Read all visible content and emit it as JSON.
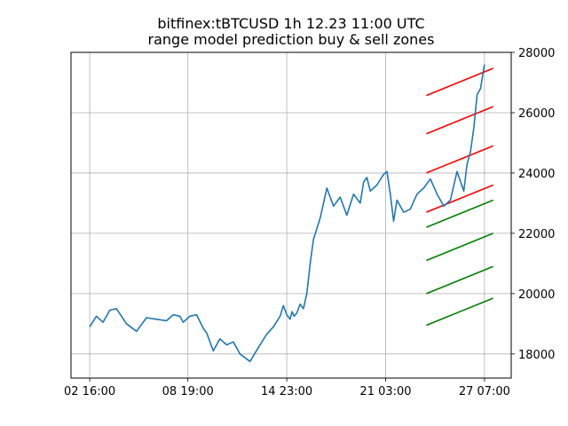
{
  "chart_data": {
    "type": "line",
    "title": "bitfinex:tBTCUSD 1h 12.23 11:00 UTC",
    "subtitle": "range model prediction buy & sell zones",
    "xlabel": "",
    "ylabel": "",
    "grid": true,
    "y_axis_side": "right",
    "x_tick_labels": [
      "02 16:00",
      "08 19:00",
      "14 23:00",
      "21 03:00",
      "27 07:00"
    ],
    "x_tick_values": [
      0,
      147,
      295,
      443,
      591
    ],
    "xlim": [
      -28,
      631
    ],
    "y_tick_values": [
      18000,
      20000,
      22000,
      24000,
      26000,
      28000
    ],
    "ylim": [
      17200,
      28000
    ],
    "series": [
      {
        "color": "#1f77b4",
        "x": [
          0,
          10,
          20,
          30,
          40,
          55,
          70,
          85,
          100,
          115,
          125,
          135,
          140,
          150,
          160,
          170,
          175,
          180,
          185,
          195,
          205,
          215,
          225,
          240,
          255,
          265,
          275,
          285,
          290,
          295,
          300,
          303,
          306,
          310,
          315,
          320,
          325,
          330,
          335,
          345,
          355,
          365,
          375,
          385,
          395,
          405,
          410,
          415,
          420,
          430,
          440,
          445,
          450,
          455,
          460,
          470,
          480,
          490,
          500,
          510,
          520,
          530,
          540,
          550,
          560,
          565,
          570,
          575,
          580,
          585,
          591
        ],
        "values": [
          18900,
          19250,
          19050,
          19450,
          19500,
          19000,
          18750,
          19200,
          19150,
          19100,
          19300,
          19250,
          19050,
          19250,
          19300,
          18850,
          18700,
          18400,
          18100,
          18500,
          18300,
          18400,
          18000,
          17750,
          18300,
          18650,
          18900,
          19250,
          19600,
          19300,
          19150,
          19400,
          19250,
          19350,
          19650,
          19500,
          20000,
          21000,
          21800,
          22500,
          23500,
          22900,
          23200,
          22600,
          23300,
          23000,
          23700,
          23850,
          23400,
          23600,
          23950,
          24050,
          23300,
          22400,
          23100,
          22700,
          22800,
          23300,
          23500,
          23800,
          23300,
          22900,
          23100,
          24050,
          23400,
          24300,
          24700,
          25500,
          26600,
          26800,
          27600
        ]
      }
    ],
    "zones": {
      "x": [
        504,
        604
      ],
      "sell": {
        "color": "#ff0000",
        "lines": [
          [
            26570,
            27470
          ],
          [
            25300,
            26200
          ],
          [
            24000,
            24900
          ],
          [
            22700,
            23600
          ]
        ]
      },
      "buy": {
        "color": "#008000",
        "lines": [
          [
            22200,
            23100
          ],
          [
            21100,
            22000
          ],
          [
            20000,
            20900
          ],
          [
            18950,
            19850
          ]
        ]
      }
    }
  }
}
